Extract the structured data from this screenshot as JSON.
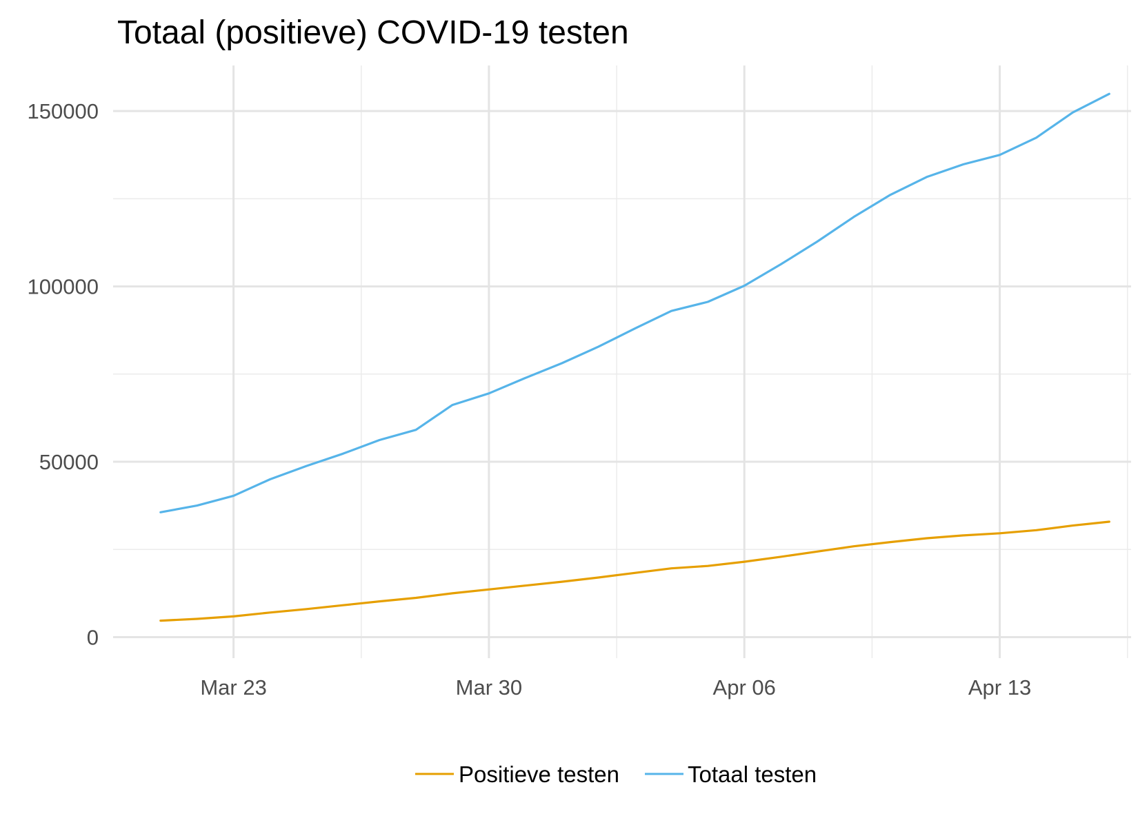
{
  "chart_data": {
    "type": "line",
    "title": "Totaal (positieve) COVID-19 testen",
    "xlabel": "",
    "ylabel": "",
    "x": [
      "Mar 21",
      "Mar 22",
      "Mar 23",
      "Mar 24",
      "Mar 25",
      "Mar 26",
      "Mar 27",
      "Mar 28",
      "Mar 29",
      "Mar 30",
      "Mar 31",
      "Apr 01",
      "Apr 02",
      "Apr 03",
      "Apr 04",
      "Apr 05",
      "Apr 06",
      "Apr 07",
      "Apr 08",
      "Apr 09",
      "Apr 10",
      "Apr 11",
      "Apr 12",
      "Apr 13",
      "Apr 14",
      "Apr 15",
      "Apr 16"
    ],
    "x_ticks": [
      "Mar 23",
      "Mar 30",
      "Apr 06",
      "Apr 13"
    ],
    "x_tick_index": [
      2,
      9,
      16,
      23
    ],
    "xlim_index": [
      -1.3,
      26.6
    ],
    "y_ticks": [
      0,
      50000,
      100000,
      150000
    ],
    "y_tick_labels": [
      "0",
      "50000",
      "100000",
      "150000"
    ],
    "y_minor_ticks": [
      25000,
      75000,
      125000
    ],
    "ylim": [
      -6000,
      163000
    ],
    "grid": true,
    "legend_position": "bottom",
    "series": [
      {
        "name": "Positieve testen",
        "color": "#E69F00",
        "values": [
          4700,
          5200,
          5900,
          7000,
          8000,
          9100,
          10200,
          11200,
          12500,
          13600,
          14700,
          15800,
          17000,
          18300,
          19600,
          20300,
          21500,
          22900,
          24400,
          25900,
          27100,
          28200,
          29000,
          29600,
          30500,
          31800,
          32900
        ]
      },
      {
        "name": "Totaal testen",
        "color": "#56B4E9",
        "values": [
          35600,
          37500,
          40300,
          45000,
          48800,
          52300,
          56200,
          59100,
          66200,
          69500,
          73900,
          78100,
          82800,
          88000,
          93000,
          95600,
          100200,
          106300,
          112800,
          119800,
          126100,
          131200,
          134800,
          137500,
          142400,
          149600,
          154900
        ]
      }
    ]
  }
}
